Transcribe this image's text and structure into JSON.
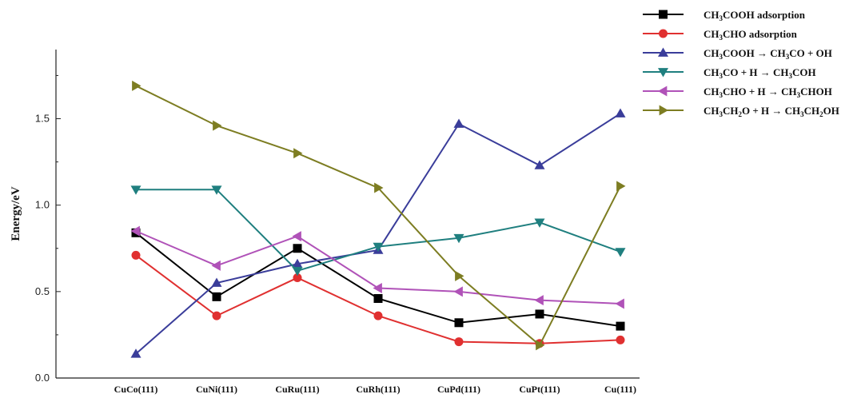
{
  "chart_data": {
    "type": "line",
    "categories": [
      "CuCo(111)",
      "CuNi(111)",
      "CuRu(111)",
      "CuRh(111)",
      "CuPd(111)",
      "CuPt(111)",
      "Cu(111)"
    ],
    "ylabel": "Energy/eV",
    "xlabel": "",
    "ylim": [
      0,
      1.9
    ],
    "yticks": [
      "0.0",
      "0.5",
      "1.0",
      "1.5"
    ],
    "legend_position": "top-right",
    "series": [
      {
        "name": "CH3COOH adsorption",
        "legend": [
          [
            "CH",
            ""
          ],
          [
            "3",
            "sub"
          ],
          [
            "COOH adsorption",
            ""
          ]
        ],
        "color": "#000000",
        "marker": "square",
        "values": [
          0.84,
          0.47,
          0.75,
          0.46,
          0.32,
          0.37,
          0.3
        ]
      },
      {
        "name": "CH3CHO adsorption",
        "legend": [
          [
            "CH",
            ""
          ],
          [
            "3",
            "sub"
          ],
          [
            "CHO adsorption",
            ""
          ]
        ],
        "color": "#e03030",
        "marker": "circle",
        "values": [
          0.71,
          0.36,
          0.58,
          0.36,
          0.21,
          0.2,
          0.22
        ]
      },
      {
        "name": "CH3COOH → CH3CO + OH",
        "legend": [
          [
            "CH",
            ""
          ],
          [
            "3",
            "sub"
          ],
          [
            "COOH  →  CH",
            ""
          ],
          [
            "3",
            "sub"
          ],
          [
            "CO + OH",
            ""
          ]
        ],
        "color": "#3a3d9a",
        "marker": "triangle-up",
        "values": [
          0.14,
          0.55,
          0.66,
          0.74,
          1.47,
          1.23,
          1.53
        ]
      },
      {
        "name": "CH3CO + H → CH3COH",
        "legend": [
          [
            "CH",
            ""
          ],
          [
            "3",
            "sub"
          ],
          [
            "CO + H  →  CH",
            ""
          ],
          [
            "3",
            "sub"
          ],
          [
            "COH",
            ""
          ]
        ],
        "color": "#1f7f7f",
        "marker": "triangle-down",
        "values": [
          1.09,
          1.09,
          0.62,
          0.76,
          0.81,
          0.9,
          0.73
        ]
      },
      {
        "name": "CH3CHO + H → CH3CHOH",
        "legend": [
          [
            "CH",
            ""
          ],
          [
            "3",
            "sub"
          ],
          [
            "CHO + H  →  CH",
            ""
          ],
          [
            "3",
            "sub"
          ],
          [
            "CHOH",
            ""
          ]
        ],
        "color": "#b052b8",
        "marker": "triangle-left",
        "values": [
          0.85,
          0.65,
          0.82,
          0.52,
          0.5,
          0.45,
          0.43
        ]
      },
      {
        "name": "CH3CH2O + H → CH3CH2OH",
        "legend": [
          [
            "CH",
            ""
          ],
          [
            "3",
            "sub"
          ],
          [
            "CH",
            ""
          ],
          [
            "2",
            "sub"
          ],
          [
            "O + H  →  CH",
            ""
          ],
          [
            "3",
            "sub"
          ],
          [
            "CH",
            ""
          ],
          [
            "2",
            "sub"
          ],
          [
            "OH",
            ""
          ]
        ],
        "color": "#7d7d22",
        "marker": "triangle-right",
        "values": [
          1.69,
          1.46,
          1.3,
          1.1,
          0.59,
          0.19,
          1.11
        ]
      }
    ]
  }
}
